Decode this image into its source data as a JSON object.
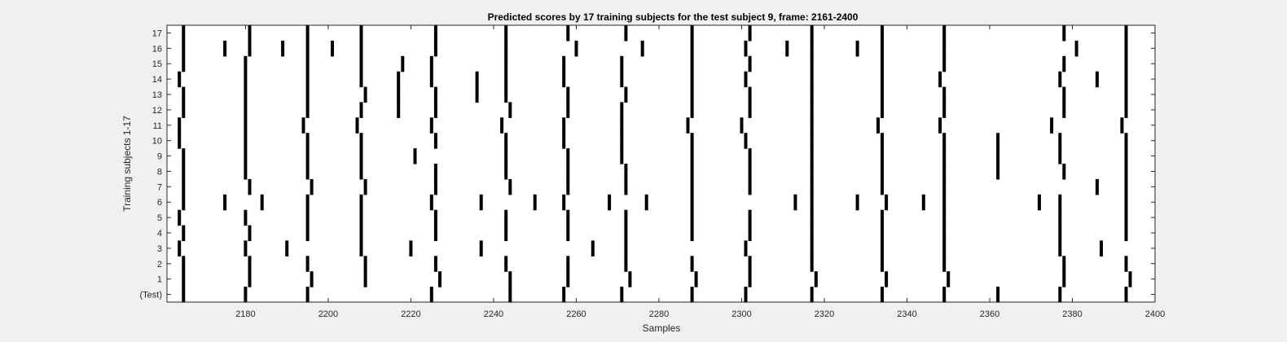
{
  "chart_data": {
    "type": "scatter",
    "title": "Predicted scores by 17 training subjects for the test subject 9, frame: 2161-2400",
    "xlabel": "Samples",
    "ylabel": "Training subjects 1-17",
    "xlim": [
      2161,
      2400
    ],
    "x_ticks": [
      2180,
      2200,
      2220,
      2240,
      2260,
      2280,
      2300,
      2320,
      2340,
      2360,
      2380,
      2400
    ],
    "y_tick_labels": [
      "(Test)",
      "1",
      "2",
      "3",
      "4",
      "5",
      "6",
      "7",
      "8",
      "9",
      "10",
      "11",
      "12",
      "13",
      "14",
      "15",
      "16",
      "17"
    ],
    "grid": false,
    "legend": "none",
    "mark_color": "#000000",
    "background": "#ffffff",
    "series": [
      {
        "row": "(Test)",
        "x": [
          2165,
          2180,
          2195,
          2225,
          2244,
          2257,
          2271,
          2288,
          2301,
          2317,
          2334,
          2349,
          2362,
          2377,
          2393
        ]
      },
      {
        "row": "1",
        "x": [
          2165,
          2181,
          2196,
          2209,
          2227,
          2244,
          2258,
          2273,
          2289,
          2302,
          2318,
          2335,
          2350,
          2378,
          2394
        ]
      },
      {
        "row": "2",
        "x": [
          2165,
          2181,
          2195,
          2209,
          2226,
          2243,
          2258,
          2272,
          2288,
          2302,
          2317,
          2334,
          2349,
          2378,
          2393
        ]
      },
      {
        "row": "3",
        "x": [
          2164,
          2180,
          2190,
          2208,
          2220,
          2237,
          2264,
          2272,
          2301,
          2317,
          2334,
          2349,
          2377,
          2387
        ]
      },
      {
        "row": "4",
        "x": [
          2165,
          2181,
          2195,
          2208,
          2226,
          2243,
          2258,
          2272,
          2288,
          2302,
          2317,
          2334,
          2349,
          2377,
          2393
        ]
      },
      {
        "row": "5",
        "x": [
          2164,
          2180,
          2195,
          2208,
          2226,
          2243,
          2258,
          2272,
          2288,
          2302,
          2317,
          2334,
          2349,
          2377,
          2393
        ]
      },
      {
        "row": "6",
        "x": [
          2165,
          2175,
          2184,
          2195,
          2208,
          2225,
          2237,
          2250,
          2257,
          2268,
          2277,
          2288,
          2313,
          2317,
          2328,
          2335,
          2344,
          2349,
          2372,
          2377,
          2393
        ]
      },
      {
        "row": "7",
        "x": [
          2165,
          2181,
          2196,
          2209,
          2226,
          2244,
          2258,
          2272,
          2288,
          2302,
          2317,
          2334,
          2349,
          2386,
          2393
        ]
      },
      {
        "row": "8",
        "x": [
          2165,
          2180,
          2195,
          2208,
          2226,
          2243,
          2258,
          2272,
          2288,
          2302,
          2317,
          2334,
          2349,
          2362,
          2378,
          2393
        ]
      },
      {
        "row": "9",
        "x": [
          2165,
          2180,
          2195,
          2208,
          2221,
          2243,
          2258,
          2271,
          2288,
          2302,
          2317,
          2334,
          2349,
          2362,
          2377,
          2393
        ]
      },
      {
        "row": "10",
        "x": [
          2164,
          2180,
          2195,
          2208,
          2226,
          2243,
          2257,
          2271,
          2288,
          2301,
          2317,
          2334,
          2349,
          2362,
          2377,
          2393
        ]
      },
      {
        "row": "11",
        "x": [
          2164,
          2180,
          2194,
          2207,
          2225,
          2242,
          2257,
          2271,
          2287,
          2300,
          2317,
          2333,
          2348,
          2375,
          2392
        ]
      },
      {
        "row": "12",
        "x": [
          2165,
          2180,
          2195,
          2208,
          2217,
          2226,
          2244,
          2258,
          2271,
          2288,
          2302,
          2317,
          2334,
          2349,
          2378,
          2393
        ]
      },
      {
        "row": "13",
        "x": [
          2165,
          2180,
          2195,
          2209,
          2217,
          2226,
          2236,
          2243,
          2258,
          2272,
          2288,
          2302,
          2317,
          2334,
          2349,
          2378,
          2393
        ]
      },
      {
        "row": "14",
        "x": [
          2164,
          2180,
          2195,
          2208,
          2217,
          2225,
          2236,
          2243,
          2257,
          2271,
          2288,
          2301,
          2317,
          2334,
          2348,
          2377,
          2386,
          2393
        ]
      },
      {
        "row": "15",
        "x": [
          2165,
          2180,
          2195,
          2208,
          2218,
          2225,
          2243,
          2257,
          2271,
          2288,
          2302,
          2317,
          2334,
          2349,
          2378,
          2393
        ]
      },
      {
        "row": "16",
        "x": [
          2165,
          2175,
          2181,
          2189,
          2195,
          2201,
          2208,
          2226,
          2243,
          2260,
          2276,
          2288,
          2301,
          2311,
          2317,
          2328,
          2334,
          2349,
          2381,
          2393
        ]
      },
      {
        "row": "17",
        "x": [
          2165,
          2181,
          2195,
          2208,
          2226,
          2243,
          2258,
          2272,
          2288,
          2302,
          2317,
          2334,
          2349,
          2378,
          2393
        ]
      }
    ]
  }
}
